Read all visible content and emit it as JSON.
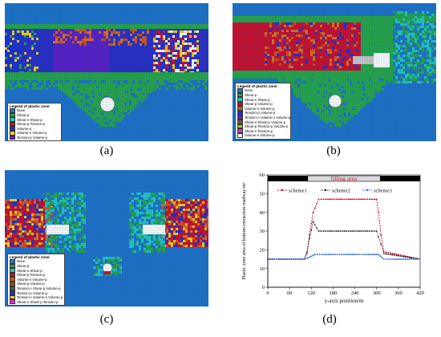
{
  "colors": {
    "background": "#1f73c9",
    "none": "#1f73c9",
    "shear_n": "#27a64a",
    "shear_p": "#22c7c7",
    "shear_n_shear_p": "#1f2fd0",
    "shear_p_tension_p": "#d0541a",
    "volume_n_volume_p": "#c8102e",
    "tension_p": "#f3d214",
    "tension_p_volume_p": "#6b1fd0",
    "mesh_line": "#0d3f70",
    "filling_box": "#d9d9d9",
    "black_bar": "#000000"
  },
  "panels": {
    "a": {
      "caption": "(a)",
      "legend_title": "Legend of plastic zone",
      "legend": [
        {
          "label": "None",
          "color": "#1f73c9"
        },
        {
          "label": "Shear-p",
          "color": "#27a64a"
        },
        {
          "label": "Shear-n Shear-p",
          "color": "#22c7c7"
        },
        {
          "label": "Shear-p Tension-p",
          "color": "#c8102e"
        },
        {
          "label": "Volume-p",
          "color": "#1f2fd0"
        },
        {
          "label": "Volume-n Volume-p",
          "color": "#f3d214"
        },
        {
          "label": "Tension-p Volume-p",
          "color": "#6b1fd0"
        }
      ]
    },
    "b": {
      "caption": "(b)",
      "legend_title": "Legend of plastic zone",
      "legend": [
        {
          "label": "None",
          "color": "#1f73c9"
        },
        {
          "label": "Shear-p",
          "color": "#27a64a"
        },
        {
          "label": "Shear-n Shear-p",
          "color": "#22c7c7"
        },
        {
          "label": "Shear-p Volume-p",
          "color": "#c8102e"
        },
        {
          "label": "Volume-n Volume-p",
          "color": "#d0541a"
        },
        {
          "label": "Tension-p Volume-p",
          "color": "#1f2fd0"
        },
        {
          "label": "Tension-n Volume-n Volume-p",
          "color": "#6b1fd0"
        },
        {
          "label": "Shear-n Shear-p Volume-p",
          "color": "#7a5a12"
        },
        {
          "label": "Shear-p Tension-p Volume-p",
          "color": "#9ad02a"
        },
        {
          "label": "Shear-n Tension-p",
          "color": "#e02fd0"
        },
        {
          "label": "Volume-n Volume-p",
          "color": "#ffffff"
        }
      ]
    },
    "c": {
      "caption": "(c)",
      "legend_title": "Legend of plastic zone",
      "legend": [
        {
          "label": "None",
          "color": "#1f73c9"
        },
        {
          "label": "Shear-p",
          "color": "#27a64a"
        },
        {
          "label": "Shear-n Shear-p",
          "color": "#22c7c7"
        },
        {
          "label": "Shear-p Tension-p",
          "color": "#c8102e"
        },
        {
          "label": "Volume-n Volume-p",
          "color": "#d0541a"
        },
        {
          "label": "Shear-p Volume-p",
          "color": "#7a5a12"
        },
        {
          "label": "Tension-n Shear-p Volume-p",
          "color": "#555555"
        },
        {
          "label": "Tension-p Volume-p",
          "color": "#1f2fd0"
        },
        {
          "label": "Tension-n Volume-n Volume-p",
          "color": "#f3d214"
        },
        {
          "label": "Shear-n Shear-p Tension-p",
          "color": "#e02fd0"
        }
      ]
    },
    "d": {
      "caption": "(d)"
    }
  },
  "chart_data": {
    "type": "line",
    "annotation": "filling area",
    "xlabel": "y-axis position/m",
    "ylabel": "Plastic zone area of bottom extraction roadway/m²",
    "xlim": [
      0,
      420
    ],
    "ylim": [
      0,
      60
    ],
    "xticks": [
      0,
      60,
      120,
      180,
      240,
      300,
      360,
      420
    ],
    "yticks": [
      0,
      10,
      20,
      30,
      40,
      50,
      60
    ],
    "filling_range": [
      110,
      310
    ],
    "legend_position": "top",
    "series": [
      {
        "name": "scheme1",
        "color": "#c8102e",
        "x": [
          0,
          100,
          108,
          115,
          125,
          140,
          160,
          200,
          240,
          280,
          300,
          305,
          312,
          320,
          420
        ],
        "y": [
          15,
          15,
          19,
          28,
          40,
          47,
          47,
          47,
          47,
          47,
          47,
          40,
          28,
          19,
          15
        ]
      },
      {
        "name": "scheme2",
        "color": "#1a1a1a",
        "x": [
          0,
          100,
          108,
          115,
          125,
          140,
          160,
          200,
          240,
          280,
          300,
          305,
          312,
          320,
          420
        ],
        "y": [
          15,
          15,
          18,
          26,
          35,
          30,
          30,
          30,
          30,
          30,
          30,
          27,
          23,
          18,
          15
        ]
      },
      {
        "name": "scheme3",
        "color": "#2a5fd0",
        "x": [
          0,
          100,
          115,
          130,
          180,
          240,
          290,
          305,
          320,
          420
        ],
        "y": [
          15,
          15,
          16,
          17.5,
          17.5,
          17.5,
          17.5,
          17.5,
          15,
          15
        ]
      }
    ]
  }
}
